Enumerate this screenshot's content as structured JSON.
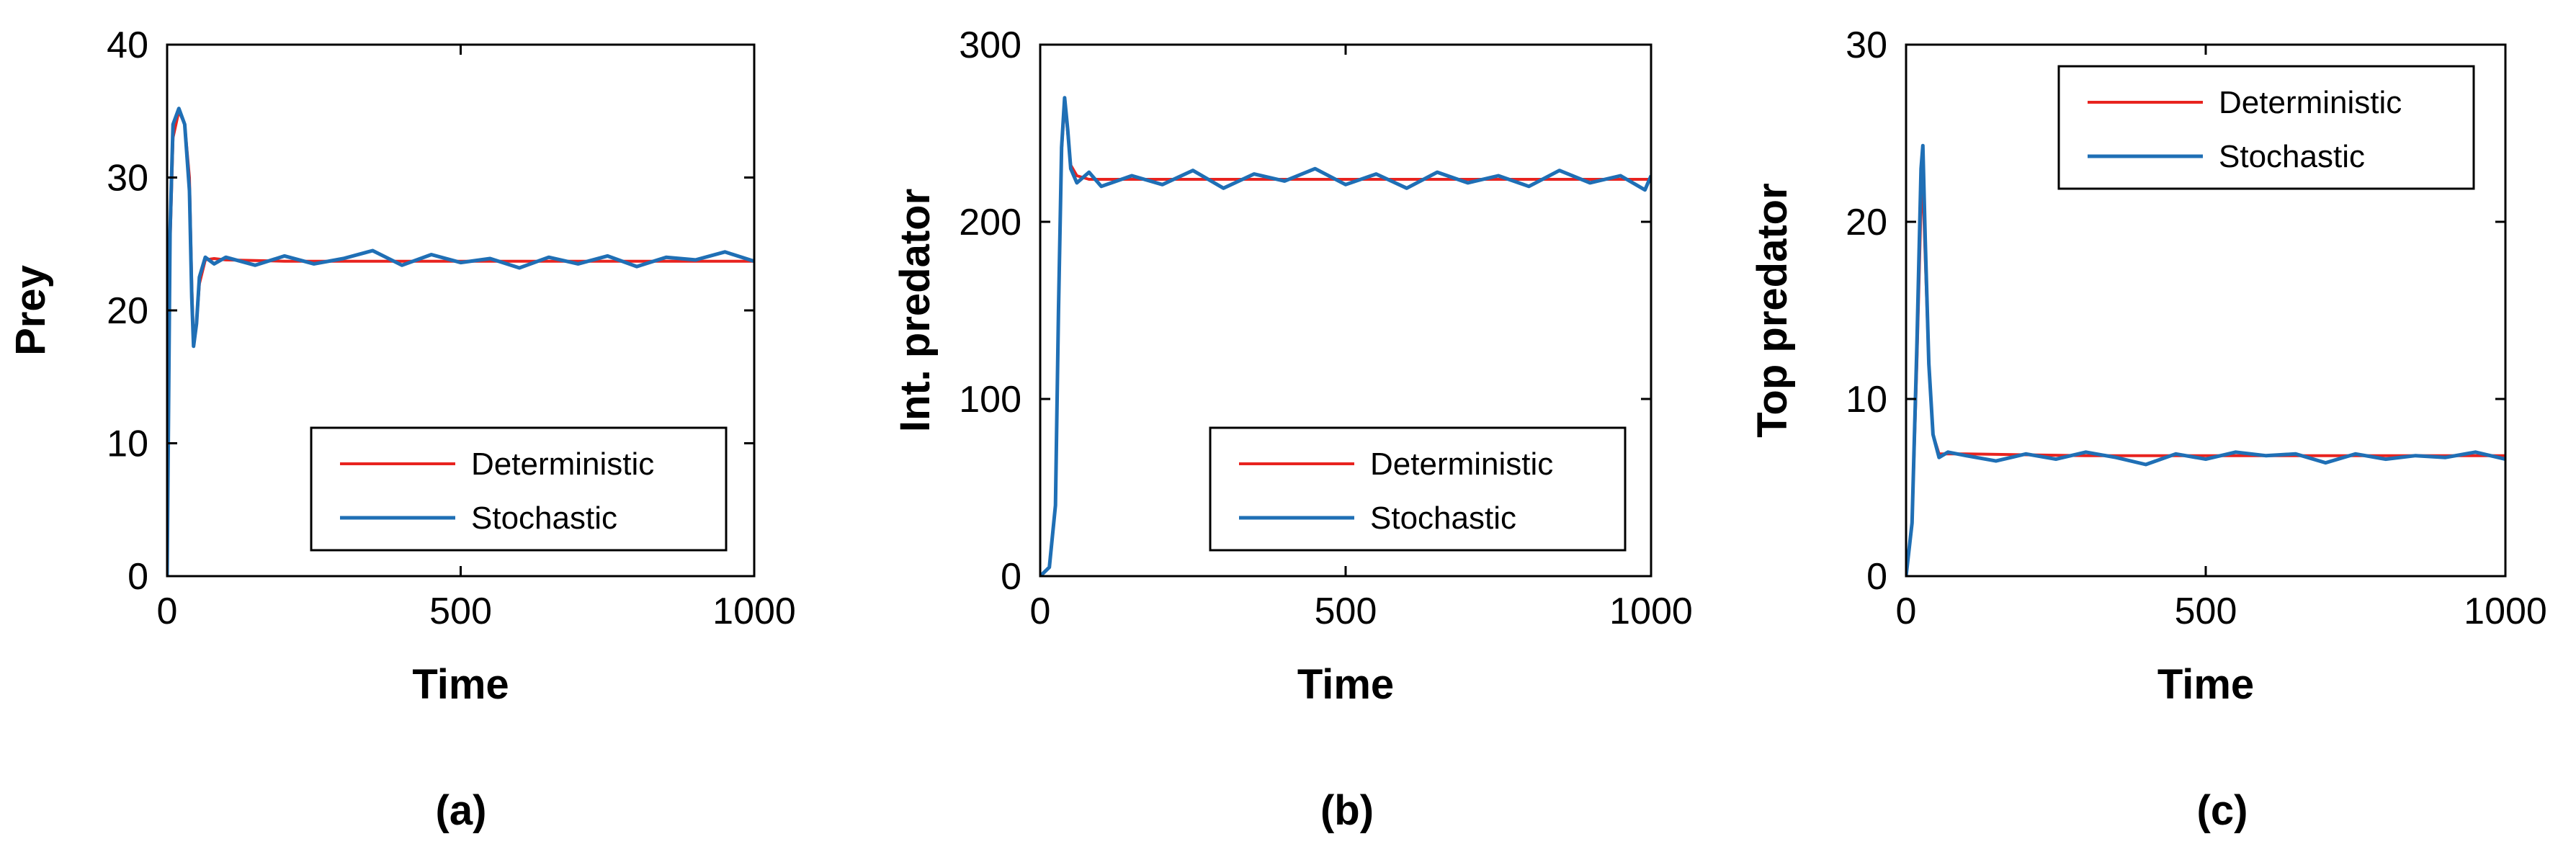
{
  "chart_data": [
    {
      "id": "a",
      "type": "line",
      "panel_label": "(a)",
      "xlabel": "Time",
      "ylabel": "Prey",
      "xlim": [
        0,
        1000
      ],
      "ylim": [
        0,
        40
      ],
      "xticks": [
        0,
        500,
        1000
      ],
      "yticks": [
        0,
        10,
        20,
        30,
        40
      ],
      "legend_position": "bottom-right",
      "series": [
        {
          "name": "Deterministic",
          "color": "#e8231f",
          "points": [
            [
              0,
              0
            ],
            [
              5,
              25
            ],
            [
              10,
              33
            ],
            [
              20,
              35
            ],
            [
              30,
              34
            ],
            [
              38,
              30
            ],
            [
              42,
              22
            ],
            [
              45,
              17.5
            ],
            [
              50,
              19
            ],
            [
              55,
              22
            ],
            [
              65,
              23.8
            ],
            [
              80,
              23.9
            ],
            [
              100,
              23.8
            ],
            [
              200,
              23.7
            ],
            [
              400,
              23.7
            ],
            [
              600,
              23.7
            ],
            [
              800,
              23.7
            ],
            [
              1000,
              23.7
            ]
          ]
        },
        {
          "name": "Stochastic",
          "color": "#1f6fb5",
          "points": [
            [
              0,
              0
            ],
            [
              5,
              26
            ],
            [
              10,
              34
            ],
            [
              20,
              35.2
            ],
            [
              30,
              34
            ],
            [
              38,
              29
            ],
            [
              42,
              21
            ],
            [
              45,
              17.3
            ],
            [
              50,
              19
            ],
            [
              55,
              22.5
            ],
            [
              65,
              24
            ],
            [
              80,
              23.5
            ],
            [
              100,
              24
            ],
            [
              150,
              23.4
            ],
            [
              200,
              24.1
            ],
            [
              250,
              23.5
            ],
            [
              300,
              23.9
            ],
            [
              350,
              24.5
            ],
            [
              400,
              23.4
            ],
            [
              450,
              24.2
            ],
            [
              500,
              23.6
            ],
            [
              550,
              23.9
            ],
            [
              600,
              23.2
            ],
            [
              650,
              24
            ],
            [
              700,
              23.5
            ],
            [
              750,
              24.1
            ],
            [
              800,
              23.3
            ],
            [
              850,
              24
            ],
            [
              900,
              23.8
            ],
            [
              950,
              24.4
            ],
            [
              1000,
              23.7
            ]
          ]
        }
      ]
    },
    {
      "id": "b",
      "type": "line",
      "panel_label": "(b)",
      "xlabel": "Time",
      "ylabel": "Int. predator",
      "xlim": [
        0,
        1000
      ],
      "ylim": [
        0,
        300
      ],
      "xticks": [
        0,
        500,
        1000
      ],
      "yticks": [
        0,
        100,
        200,
        300
      ],
      "legend_position": "bottom-right",
      "series": [
        {
          "name": "Deterministic",
          "color": "#e8231f",
          "points": [
            [
              0,
              0
            ],
            [
              15,
              5
            ],
            [
              25,
              40
            ],
            [
              30,
              150
            ],
            [
              35,
              240
            ],
            [
              40,
              268
            ],
            [
              45,
              250
            ],
            [
              50,
              232
            ],
            [
              60,
              226
            ],
            [
              80,
              224
            ],
            [
              100,
              224
            ],
            [
              300,
              224
            ],
            [
              500,
              224
            ],
            [
              700,
              224
            ],
            [
              1000,
              224
            ]
          ]
        },
        {
          "name": "Stochastic",
          "color": "#1f6fb5",
          "points": [
            [
              0,
              0
            ],
            [
              15,
              5
            ],
            [
              25,
              40
            ],
            [
              30,
              150
            ],
            [
              35,
              242
            ],
            [
              40,
              270
            ],
            [
              45,
              252
            ],
            [
              50,
              230
            ],
            [
              60,
              222
            ],
            [
              80,
              228
            ],
            [
              100,
              220
            ],
            [
              150,
              226
            ],
            [
              200,
              221
            ],
            [
              250,
              229
            ],
            [
              300,
              219
            ],
            [
              350,
              227
            ],
            [
              400,
              223
            ],
            [
              450,
              230
            ],
            [
              500,
              221
            ],
            [
              550,
              227
            ],
            [
              600,
              219
            ],
            [
              650,
              228
            ],
            [
              700,
              222
            ],
            [
              750,
              226
            ],
            [
              800,
              220
            ],
            [
              850,
              229
            ],
            [
              900,
              222
            ],
            [
              950,
              226
            ],
            [
              990,
              218
            ],
            [
              1000,
              226
            ]
          ]
        }
      ]
    },
    {
      "id": "c",
      "type": "line",
      "panel_label": "(c)",
      "xlabel": "Time",
      "ylabel": "Top predator",
      "xlim": [
        0,
        1000
      ],
      "ylim": [
        0,
        30
      ],
      "xticks": [
        0,
        500,
        1000
      ],
      "yticks": [
        0,
        10,
        20,
        30
      ],
      "legend_position": "top-right",
      "series": [
        {
          "name": "Deterministic",
          "color": "#e8231f",
          "points": [
            [
              0,
              0
            ],
            [
              10,
              3
            ],
            [
              18,
              12
            ],
            [
              25,
              21
            ],
            [
              28,
              22
            ],
            [
              32,
              18
            ],
            [
              38,
              12
            ],
            [
              45,
              8
            ],
            [
              55,
              6.9
            ],
            [
              70,
              6.9
            ],
            [
              100,
              6.9
            ],
            [
              300,
              6.8
            ],
            [
              500,
              6.8
            ],
            [
              700,
              6.8
            ],
            [
              1000,
              6.8
            ]
          ]
        },
        {
          "name": "Stochastic",
          "color": "#1f6fb5",
          "points": [
            [
              0,
              0
            ],
            [
              10,
              3
            ],
            [
              18,
              13
            ],
            [
              25,
              23
            ],
            [
              28,
              24.3
            ],
            [
              32,
              19
            ],
            [
              38,
              12
            ],
            [
              45,
              8
            ],
            [
              55,
              6.7
            ],
            [
              70,
              7
            ],
            [
              100,
              6.8
            ],
            [
              150,
              6.5
            ],
            [
              200,
              6.9
            ],
            [
              250,
              6.6
            ],
            [
              300,
              7
            ],
            [
              350,
              6.7
            ],
            [
              400,
              6.3
            ],
            [
              450,
              6.9
            ],
            [
              500,
              6.6
            ],
            [
              550,
              7
            ],
            [
              600,
              6.8
            ],
            [
              650,
              6.9
            ],
            [
              700,
              6.4
            ],
            [
              750,
              6.9
            ],
            [
              800,
              6.6
            ],
            [
              850,
              6.8
            ],
            [
              900,
              6.7
            ],
            [
              950,
              7
            ],
            [
              1000,
              6.6
            ]
          ]
        }
      ]
    }
  ]
}
